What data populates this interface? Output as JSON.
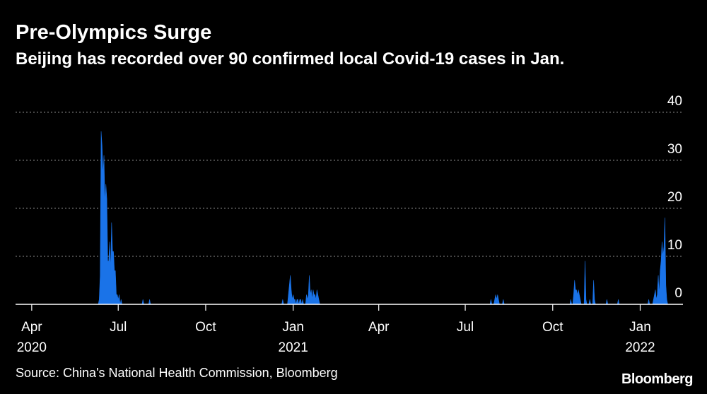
{
  "title": "Pre-Olympics Surge",
  "subtitle": "Beijing has recorded over 90 confirmed local Covid-19 cases in Jan.",
  "source": "Source: China's National Health Commission, Bloomberg",
  "logo": "Bloomberg",
  "colors": {
    "background": "#000000",
    "area": "#1a73e8",
    "grid": "#8c8c8c",
    "text": "#ffffff"
  },
  "chart_data": {
    "type": "area",
    "ylim": [
      0,
      40
    ],
    "yticks": [
      0,
      10,
      20,
      30,
      40
    ],
    "grid": true,
    "xlim": [
      "2020-03-15",
      "2022-02-15"
    ],
    "xticks": [
      {
        "date": "2020-04-01",
        "label": "Apr",
        "year": "2020"
      },
      {
        "date": "2020-07-01",
        "label": "Jul",
        "year": ""
      },
      {
        "date": "2020-10-01",
        "label": "Oct",
        "year": ""
      },
      {
        "date": "2021-01-01",
        "label": "Jan",
        "year": "2021"
      },
      {
        "date": "2021-04-01",
        "label": "Apr",
        "year": ""
      },
      {
        "date": "2021-07-01",
        "label": "Jul",
        "year": ""
      },
      {
        "date": "2021-10-01",
        "label": "Oct",
        "year": ""
      },
      {
        "date": "2022-01-01",
        "label": "Jan",
        "year": "2022"
      }
    ],
    "series": [
      {
        "values": [
          [
            "2020-06-10",
            0
          ],
          [
            "2020-06-11",
            1
          ],
          [
            "2020-06-12",
            6
          ],
          [
            "2020-06-13",
            36
          ],
          [
            "2020-06-14",
            33
          ],
          [
            "2020-06-15",
            27
          ],
          [
            "2020-06-16",
            31
          ],
          [
            "2020-06-17",
            21
          ],
          [
            "2020-06-18",
            25
          ],
          [
            "2020-06-19",
            22
          ],
          [
            "2020-06-20",
            9
          ],
          [
            "2020-06-21",
            9
          ],
          [
            "2020-06-22",
            13
          ],
          [
            "2020-06-23",
            7
          ],
          [
            "2020-06-24",
            17
          ],
          [
            "2020-06-25",
            11
          ],
          [
            "2020-06-26",
            11
          ],
          [
            "2020-06-27",
            7
          ],
          [
            "2020-06-28",
            7
          ],
          [
            "2020-06-29",
            2
          ],
          [
            "2020-06-30",
            2
          ],
          [
            "2020-07-01",
            1
          ],
          [
            "2020-07-02",
            2
          ],
          [
            "2020-07-03",
            0
          ],
          [
            "2020-07-04",
            1
          ],
          [
            "2020-07-05",
            0
          ],
          [
            "2020-07-06",
            0
          ],
          [
            "2020-07-26",
            0
          ],
          [
            "2020-07-27",
            1
          ],
          [
            "2020-07-28",
            0
          ],
          [
            "2020-08-02",
            0
          ],
          [
            "2020-08-03",
            1
          ],
          [
            "2020-08-04",
            0
          ],
          [
            "2020-12-20",
            0
          ],
          [
            "2020-12-21",
            1
          ],
          [
            "2020-12-22",
            0
          ],
          [
            "2020-12-26",
            0
          ],
          [
            "2020-12-27",
            2
          ],
          [
            "2020-12-28",
            4
          ],
          [
            "2020-12-29",
            6
          ],
          [
            "2020-12-30",
            3
          ],
          [
            "2020-12-31",
            1
          ],
          [
            "2021-01-01",
            2
          ],
          [
            "2021-01-02",
            1
          ],
          [
            "2021-01-03",
            1
          ],
          [
            "2021-01-04",
            0
          ],
          [
            "2021-01-05",
            1
          ],
          [
            "2021-01-06",
            1
          ],
          [
            "2021-01-07",
            0
          ],
          [
            "2021-01-08",
            1
          ],
          [
            "2021-01-09",
            1
          ],
          [
            "2021-01-10",
            0
          ],
          [
            "2021-01-11",
            1
          ],
          [
            "2021-01-12",
            0
          ],
          [
            "2021-01-14",
            0
          ],
          [
            "2021-01-15",
            2
          ],
          [
            "2021-01-16",
            1
          ],
          [
            "2021-01-17",
            2
          ],
          [
            "2021-01-18",
            6
          ],
          [
            "2021-01-19",
            2
          ],
          [
            "2021-01-20",
            3
          ],
          [
            "2021-01-21",
            1
          ],
          [
            "2021-01-22",
            3
          ],
          [
            "2021-01-23",
            2
          ],
          [
            "2021-01-24",
            2
          ],
          [
            "2021-01-25",
            1
          ],
          [
            "2021-01-26",
            3
          ],
          [
            "2021-01-27",
            2
          ],
          [
            "2021-01-28",
            1
          ],
          [
            "2021-01-29",
            0
          ],
          [
            "2021-07-27",
            0
          ],
          [
            "2021-07-28",
            1
          ],
          [
            "2021-07-29",
            0
          ],
          [
            "2021-07-31",
            0
          ],
          [
            "2021-08-01",
            1
          ],
          [
            "2021-08-02",
            2
          ],
          [
            "2021-08-03",
            1
          ],
          [
            "2021-08-04",
            2
          ],
          [
            "2021-08-05",
            1
          ],
          [
            "2021-08-06",
            0
          ],
          [
            "2021-08-09",
            0
          ],
          [
            "2021-08-10",
            1
          ],
          [
            "2021-08-11",
            0
          ],
          [
            "2021-10-19",
            0
          ],
          [
            "2021-10-20",
            1
          ],
          [
            "2021-10-21",
            0
          ],
          [
            "2021-10-22",
            0
          ],
          [
            "2021-10-23",
            2
          ],
          [
            "2021-10-24",
            5
          ],
          [
            "2021-10-25",
            3
          ],
          [
            "2021-10-26",
            3
          ],
          [
            "2021-10-27",
            2
          ],
          [
            "2021-10-28",
            3
          ],
          [
            "2021-10-29",
            2
          ],
          [
            "2021-10-30",
            1
          ],
          [
            "2021-10-31",
            0
          ],
          [
            "2021-11-03",
            0
          ],
          [
            "2021-11-04",
            9
          ],
          [
            "2021-11-05",
            1
          ],
          [
            "2021-11-06",
            0
          ],
          [
            "2021-11-08",
            0
          ],
          [
            "2021-11-09",
            1
          ],
          [
            "2021-11-10",
            0
          ],
          [
            "2021-11-12",
            0
          ],
          [
            "2021-11-13",
            5
          ],
          [
            "2021-11-14",
            1
          ],
          [
            "2021-11-15",
            0
          ],
          [
            "2021-11-26",
            0
          ],
          [
            "2021-11-27",
            1
          ],
          [
            "2021-11-28",
            0
          ],
          [
            "2021-12-08",
            0
          ],
          [
            "2021-12-09",
            1
          ],
          [
            "2021-12-10",
            0
          ],
          [
            "2022-01-09",
            0
          ],
          [
            "2022-01-10",
            1
          ],
          [
            "2022-01-11",
            0
          ],
          [
            "2022-01-14",
            0
          ],
          [
            "2022-01-15",
            1
          ],
          [
            "2022-01-16",
            2
          ],
          [
            "2022-01-17",
            3
          ],
          [
            "2022-01-18",
            1
          ],
          [
            "2022-01-19",
            2
          ],
          [
            "2022-01-20",
            6
          ],
          [
            "2022-01-21",
            2
          ],
          [
            "2022-01-22",
            7
          ],
          [
            "2022-01-23",
            9
          ],
          [
            "2022-01-24",
            13
          ],
          [
            "2022-01-25",
            10
          ],
          [
            "2022-01-26",
            12
          ],
          [
            "2022-01-27",
            18
          ],
          [
            "2022-01-28",
            4
          ],
          [
            "2022-01-29",
            1
          ],
          [
            "2022-01-30",
            0
          ]
        ]
      }
    ]
  }
}
